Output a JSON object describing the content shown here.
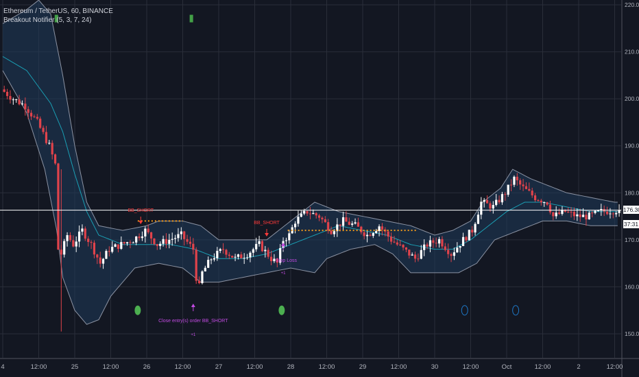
{
  "header": {
    "title": "Ethereum / TetherUS, 60, BINANCE",
    "study": "Breakout Notifier (5, 3, 7, 24)"
  },
  "price_labels": {
    "last_price": "176.30",
    "countdown": "37:31"
  },
  "colors": {
    "background": "#131722",
    "up_candle": "#ffffff",
    "down_candle": "#e0434b",
    "basis": "#1a9fb4",
    "band": "#8c93a3",
    "band_fill": "#1f3a5a",
    "signal": "#f59c1a",
    "strategy": "#c34be3",
    "green_marker": "#4caf50",
    "blue_marker": "#1e78c8",
    "green_square": "#43a047"
  },
  "annotations": {
    "short1": "BB_SHORT",
    "short2": "BB_SHORT",
    "close_entry": "Close entry(s) order BB_SHORT",
    "close_qty": "+1",
    "stop_loss": "Stop Loss",
    "stop_qty": "+1"
  },
  "chart_data": {
    "type": "candlestick",
    "symbol": "ETHUSDT",
    "interval": "60",
    "y_ticks": [
      150,
      160,
      170,
      180,
      190,
      200,
      210,
      220
    ],
    "y_tick_labels": [
      "150.00",
      "160.00",
      "170.00",
      "180.00",
      "190.00",
      "200.00",
      "210.00",
      "220.00"
    ],
    "ylim": [
      147.2,
      222.5
    ],
    "x_labels": [
      "4",
      "12:00",
      "25",
      "12:00",
      "26",
      "12:00",
      "27",
      "12:00",
      "28",
      "12:00",
      "29",
      "12:00",
      "30",
      "12:00",
      "Oct",
      "12:00",
      "2",
      "12:00"
    ],
    "x_label_hours": [
      0,
      12,
      24,
      36,
      48,
      60,
      72,
      84,
      96,
      108,
      120,
      132,
      144,
      156,
      168,
      180,
      192,
      204
    ],
    "last_price": 176.3,
    "price_waypoints": [
      [
        0,
        202
      ],
      [
        4,
        200
      ],
      [
        8,
        198.5
      ],
      [
        12,
        195
      ],
      [
        16,
        190
      ],
      [
        18,
        186
      ],
      [
        19,
        168
      ],
      [
        20,
        167
      ],
      [
        22,
        171
      ],
      [
        24,
        169
      ],
      [
        27,
        172
      ],
      [
        30,
        169
      ],
      [
        33,
        165
      ],
      [
        36,
        168
      ],
      [
        40,
        169
      ],
      [
        44,
        170
      ],
      [
        48,
        172
      ],
      [
        52,
        169
      ],
      [
        56,
        170
      ],
      [
        60,
        171
      ],
      [
        64,
        168
      ],
      [
        65,
        162
      ],
      [
        66,
        160
      ],
      [
        67,
        163
      ],
      [
        70,
        166
      ],
      [
        74,
        168
      ],
      [
        78,
        166
      ],
      [
        82,
        167
      ],
      [
        86,
        169
      ],
      [
        90,
        166
      ],
      [
        92,
        165
      ],
      [
        94,
        170
      ],
      [
        96,
        171
      ],
      [
        98,
        174
      ],
      [
        102,
        176
      ],
      [
        106,
        175
      ],
      [
        110,
        172
      ],
      [
        114,
        174
      ],
      [
        118,
        173
      ],
      [
        122,
        171
      ],
      [
        126,
        173
      ],
      [
        130,
        170
      ],
      [
        134,
        168
      ],
      [
        138,
        166
      ],
      [
        142,
        169
      ],
      [
        146,
        170
      ],
      [
        150,
        167
      ],
      [
        154,
        170
      ],
      [
        157,
        172
      ],
      [
        160,
        178
      ],
      [
        164,
        177
      ],
      [
        168,
        180
      ],
      [
        171,
        183
      ],
      [
        174,
        181
      ],
      [
        178,
        179
      ],
      [
        182,
        178
      ],
      [
        184,
        175
      ],
      [
        188,
        176
      ],
      [
        192,
        175
      ],
      [
        196,
        175
      ],
      [
        200,
        176
      ],
      [
        205,
        176.3
      ]
    ],
    "upper_band": [
      [
        0,
        216
      ],
      [
        8,
        219
      ],
      [
        12,
        221
      ],
      [
        16,
        218
      ],
      [
        20,
        205
      ],
      [
        24,
        190
      ],
      [
        28,
        178
      ],
      [
        32,
        173
      ],
      [
        40,
        172
      ],
      [
        48,
        173
      ],
      [
        52,
        174
      ],
      [
        60,
        174
      ],
      [
        66,
        173
      ],
      [
        72,
        170
      ],
      [
        80,
        170
      ],
      [
        88,
        170
      ],
      [
        96,
        174
      ],
      [
        104,
        178
      ],
      [
        112,
        176
      ],
      [
        120,
        175
      ],
      [
        128,
        174
      ],
      [
        136,
        173
      ],
      [
        144,
        171
      ],
      [
        150,
        172
      ],
      [
        156,
        174
      ],
      [
        160,
        178
      ],
      [
        166,
        181
      ],
      [
        170,
        185
      ],
      [
        176,
        183
      ],
      [
        180,
        182
      ],
      [
        188,
        180
      ],
      [
        196,
        179
      ],
      [
        204,
        178
      ]
    ],
    "basis": [
      [
        0,
        209
      ],
      [
        8,
        206
      ],
      [
        16,
        199
      ],
      [
        20,
        193
      ],
      [
        24,
        184
      ],
      [
        28,
        176
      ],
      [
        32,
        171
      ],
      [
        40,
        169
      ],
      [
        48,
        169
      ],
      [
        56,
        169
      ],
      [
        64,
        168
      ],
      [
        72,
        166
      ],
      [
        80,
        166
      ],
      [
        88,
        167
      ],
      [
        96,
        169
      ],
      [
        104,
        171
      ],
      [
        112,
        173
      ],
      [
        120,
        172
      ],
      [
        128,
        171
      ],
      [
        136,
        169
      ],
      [
        144,
        168
      ],
      [
        150,
        168
      ],
      [
        156,
        170
      ],
      [
        162,
        173
      ],
      [
        168,
        176
      ],
      [
        174,
        178
      ],
      [
        180,
        178
      ],
      [
        188,
        177
      ],
      [
        196,
        176
      ],
      [
        204,
        176
      ]
    ],
    "lower_band": [
      [
        0,
        206
      ],
      [
        8,
        197
      ],
      [
        14,
        185
      ],
      [
        18,
        172
      ],
      [
        20,
        162
      ],
      [
        24,
        155
      ],
      [
        28,
        152
      ],
      [
        32,
        153
      ],
      [
        36,
        158
      ],
      [
        44,
        164
      ],
      [
        52,
        165
      ],
      [
        60,
        164
      ],
      [
        66,
        161
      ],
      [
        72,
        161
      ],
      [
        80,
        162
      ],
      [
        88,
        163
      ],
      [
        96,
        164
      ],
      [
        104,
        163
      ],
      [
        108,
        166
      ],
      [
        116,
        168
      ],
      [
        124,
        169
      ],
      [
        130,
        167
      ],
      [
        136,
        163
      ],
      [
        144,
        163
      ],
      [
        152,
        163
      ],
      [
        158,
        165
      ],
      [
        164,
        170
      ],
      [
        172,
        172
      ],
      [
        180,
        174
      ],
      [
        188,
        174
      ],
      [
        196,
        173
      ],
      [
        204,
        173
      ]
    ],
    "signal_lines": [
      {
        "from_hour": 45,
        "to_hour": 60,
        "price": 174
      },
      {
        "from_hour": 95,
        "to_hour": 138,
        "price": 172
      }
    ],
    "markers": [
      {
        "kind": "green_dot",
        "hour": 45,
        "price": 155
      },
      {
        "kind": "green_dot",
        "hour": 93,
        "price": 155
      },
      {
        "kind": "blue_circle",
        "hour": 154,
        "price": 155
      },
      {
        "kind": "blue_circle",
        "hour": 171,
        "price": 155
      },
      {
        "kind": "green_square",
        "hour": 18,
        "price": 217
      },
      {
        "kind": "green_square",
        "hour": 63,
        "price": 217
      }
    ]
  }
}
